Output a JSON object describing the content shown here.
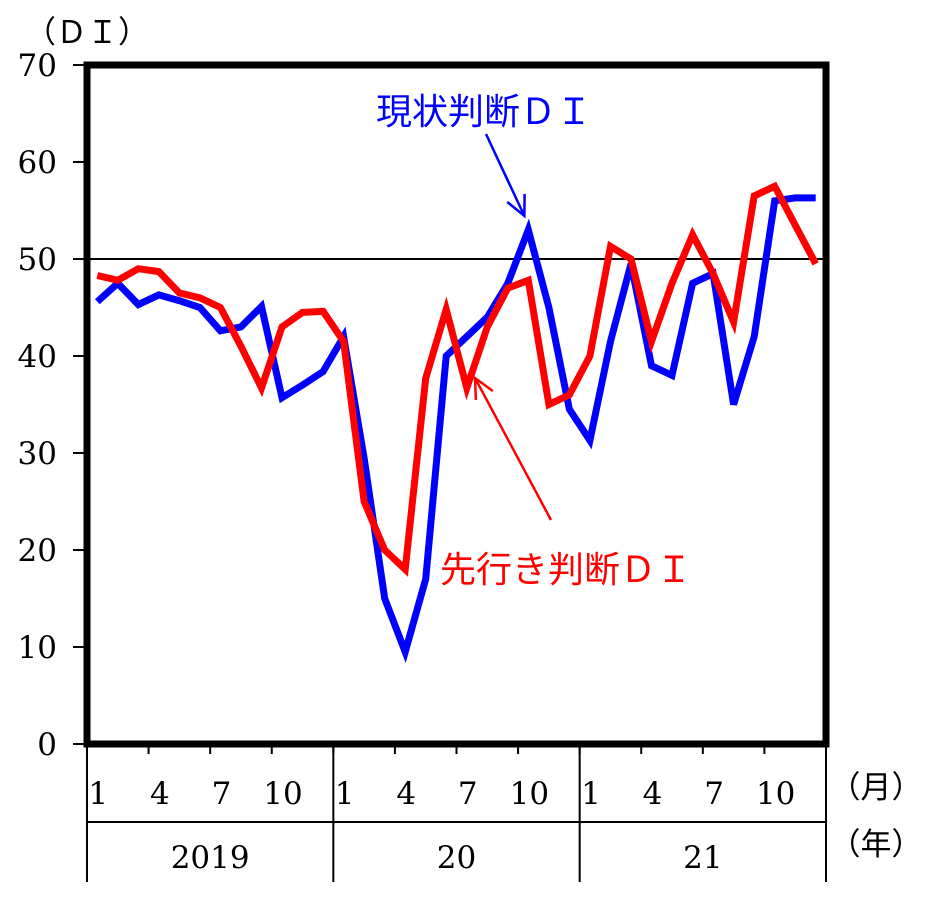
{
  "chart_data": {
    "type": "line",
    "yunit": "（ＤＩ）",
    "ylim": [
      0,
      70
    ],
    "yticks": [
      "0",
      "10",
      "20",
      "30",
      "40",
      "50",
      "60",
      "70"
    ],
    "reference_line": 50,
    "month_unit": "（月）",
    "year_unit": "（年）",
    "x": [
      "2019-01",
      "2019-02",
      "2019-03",
      "2019-04",
      "2019-05",
      "2019-06",
      "2019-07",
      "2019-08",
      "2019-09",
      "2019-10",
      "2019-11",
      "2019-12",
      "2020-01",
      "2020-02",
      "2020-03",
      "2020-04",
      "2020-05",
      "2020-06",
      "2020-07",
      "2020-08",
      "2020-09",
      "2020-10",
      "2020-11",
      "2020-12",
      "2021-01",
      "2021-02",
      "2021-03",
      "2021-04",
      "2021-05",
      "2021-06",
      "2021-07",
      "2021-08",
      "2021-09",
      "2021-10",
      "2021-11",
      "2021-12"
    ],
    "month_ticks": [
      {
        "index": 0,
        "label": "1"
      },
      {
        "index": 3,
        "label": "4"
      },
      {
        "index": 6,
        "label": "7"
      },
      {
        "index": 9,
        "label": "10"
      },
      {
        "index": 12,
        "label": "1"
      },
      {
        "index": 15,
        "label": "4"
      },
      {
        "index": 18,
        "label": "7"
      },
      {
        "index": 21,
        "label": "10"
      },
      {
        "index": 24,
        "label": "1"
      },
      {
        "index": 27,
        "label": "4"
      },
      {
        "index": 30,
        "label": "7"
      },
      {
        "index": 33,
        "label": "10"
      }
    ],
    "years": [
      {
        "label": "2019",
        "start": 0,
        "end": 12
      },
      {
        "label": "20",
        "start": 12,
        "end": 24
      },
      {
        "label": "21",
        "start": 24,
        "end": 36
      }
    ],
    "series": [
      {
        "name": "現状判断ＤＩ",
        "color": "#0000ff",
        "values": [
          45.6,
          47.5,
          45.3,
          46.3,
          45.7,
          45.0,
          42.6,
          43.0,
          45.1,
          35.7,
          37.0,
          38.4,
          42.0,
          29.5,
          15.0,
          9.5,
          17.0,
          40.0,
          42.0,
          44.0,
          47.5,
          53.0,
          45.0,
          34.5,
          31.3,
          41.5,
          49.5,
          39.0,
          38.0,
          47.5,
          48.5,
          35.0,
          42.0,
          56.0,
          56.3,
          56.3
        ]
      },
      {
        "name": "先行き判断ＤＩ",
        "color": "#ff0000",
        "values": [
          48.3,
          47.8,
          49.0,
          48.7,
          46.5,
          46.0,
          45.0,
          41.0,
          36.7,
          43.0,
          44.5,
          44.6,
          41.5,
          25.0,
          20.0,
          18.0,
          37.7,
          44.8,
          36.7,
          43.0,
          47.0,
          47.8,
          35.0,
          36.0,
          40.0,
          51.3,
          50.0,
          41.5,
          47.5,
          52.5,
          48.5,
          43.5,
          56.5,
          57.5,
          53.5,
          49.5
        ]
      }
    ],
    "annotations": [
      {
        "text": "現状判断ＤＩ",
        "color": "#0000ff",
        "points_to_index": 21,
        "series": 0
      },
      {
        "text": "先行き判断ＤＩ",
        "color": "#ff0000",
        "points_to_index": 19,
        "series": 1
      }
    ]
  }
}
